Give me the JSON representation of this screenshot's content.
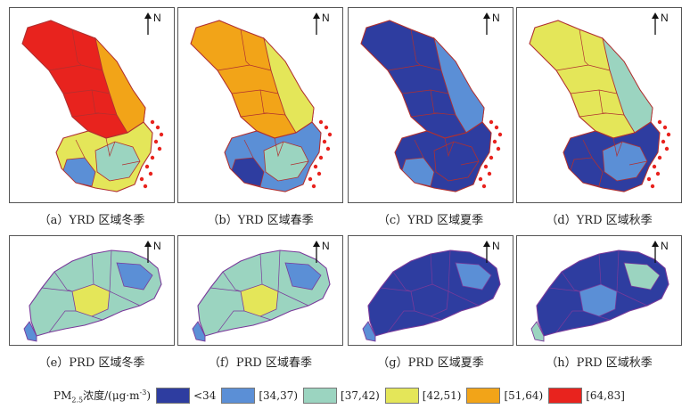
{
  "panels": [
    {
      "label": "（a）YRD 区域冬季",
      "region": "YRD",
      "season": "winter",
      "north": "N",
      "fill": {
        "north": "#e8231e",
        "north2": "#f2a418",
        "south": "#e4e659",
        "south2": "#9bd4c0",
        "south3": "#5b8fd6"
      }
    },
    {
      "label": "（b）YRD 区域春季",
      "region": "YRD",
      "season": "spring",
      "north": "N",
      "fill": {
        "north": "#f2a418",
        "north2": "#e4e659",
        "south": "#5b8fd6",
        "south2": "#9bd4c0",
        "south3": "#2e3da0"
      }
    },
    {
      "label": "（c）YRD 区域夏季",
      "region": "YRD",
      "season": "summer",
      "north": "N",
      "fill": {
        "north": "#2e3da0",
        "north2": "#5b8fd6",
        "south": "#2e3da0",
        "south2": "#2e3da0",
        "south3": "#5b8fd6"
      }
    },
    {
      "label": "（d）YRD 区域秋季",
      "region": "YRD",
      "season": "autumn",
      "north": "N",
      "fill": {
        "north": "#e4e659",
        "north2": "#9bd4c0",
        "south": "#2e3da0",
        "south2": "#5b8fd6",
        "south3": "#2e3da0"
      }
    },
    {
      "label": "（e）PRD 区域冬季",
      "region": "PRD",
      "season": "winter",
      "north": "N",
      "fill": {
        "main": "#9bd4c0",
        "mid": "#e4e659",
        "alt": "#5b8fd6"
      }
    },
    {
      "label": "（f）PRD 区域春季",
      "region": "PRD",
      "season": "spring",
      "north": "N",
      "fill": {
        "main": "#9bd4c0",
        "mid": "#e4e659",
        "alt": "#5b8fd6"
      }
    },
    {
      "label": "（g）PRD 区域夏季",
      "region": "PRD",
      "season": "summer",
      "north": "N",
      "fill": {
        "main": "#2e3da0",
        "mid": "#2e3da0",
        "alt": "#5b8fd6"
      }
    },
    {
      "label": "（h）PRD 区域秋季",
      "region": "PRD",
      "season": "autumn",
      "north": "N",
      "fill": {
        "main": "#2e3da0",
        "mid": "#5b8fd6",
        "alt": "#9bd4c0"
      }
    }
  ],
  "legend": {
    "title_main": "PM",
    "title_sub": "2.5",
    "title_rest": "浓度/(μg·m",
    "title_sup": "-3",
    "title_end": ")",
    "items": [
      {
        "label": "<34",
        "color": "#2e3da0"
      },
      {
        "label": "[34,37)",
        "color": "#5b8fd6"
      },
      {
        "label": "[37,42)",
        "color": "#9bd4c0"
      },
      {
        "label": "[42,51)",
        "color": "#e4e659"
      },
      {
        "label": "[51,64)",
        "color": "#f2a418"
      },
      {
        "label": "[64,83]",
        "color": "#e8231e"
      }
    ]
  }
}
